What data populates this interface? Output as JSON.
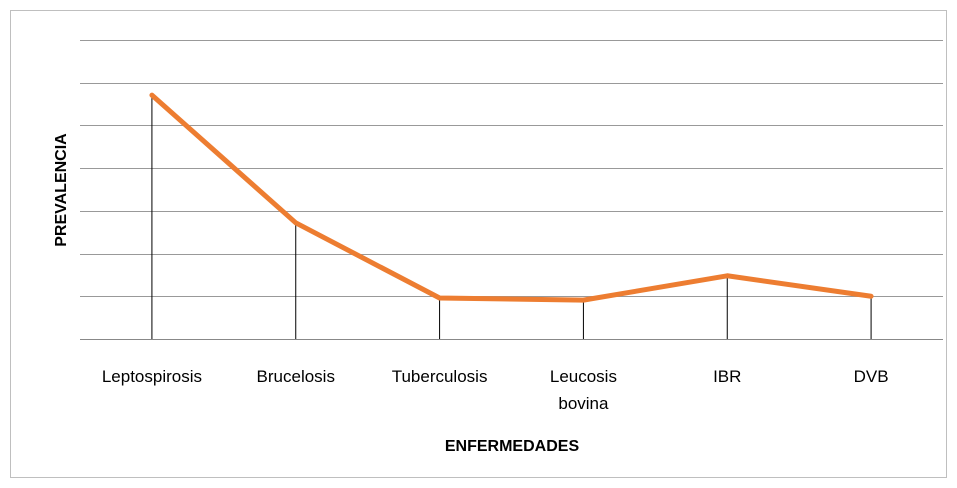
{
  "chart_data": {
    "type": "line",
    "xlabel": "ENFERMEDADES",
    "ylabel": "PREVALENCIA",
    "categories": [
      "Leptospirosis",
      "Brucelosis",
      "Tuberculosis",
      "Leucosis bovina",
      "IBR",
      "DVB"
    ],
    "series": [
      {
        "name": "Prevalencia",
        "color": "#ed7d31",
        "values": [
          5.71,
          2.72,
          0.96,
          0.91,
          1.48,
          1.0
        ]
      }
    ],
    "ylim": [
      0,
      7
    ],
    "yticks": [
      0,
      1,
      2,
      3,
      4,
      5,
      6,
      7
    ],
    "grid": true,
    "drop_lines": true
  }
}
